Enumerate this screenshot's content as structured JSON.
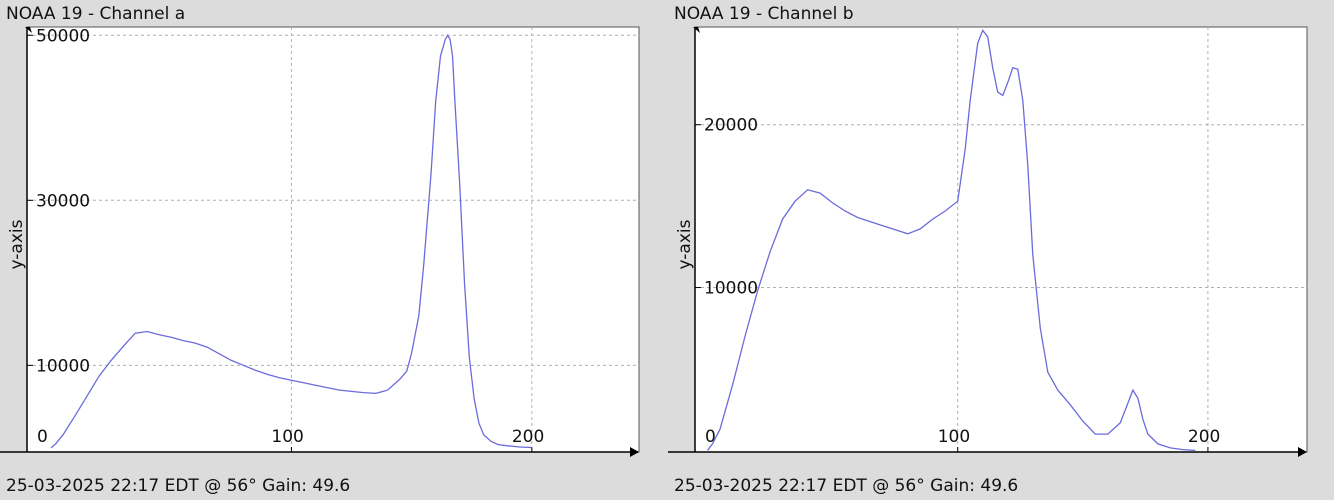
{
  "panels": [
    {
      "title": "NOAA 19 - Channel a",
      "footer": "25-03-2025 22:17 EDT @ 56° Gain: 49.6"
    },
    {
      "title": "NOAA 19 - Channel b",
      "footer": "25-03-2025 22:17 EDT @ 56° Gain: 49.6"
    }
  ],
  "colors": {
    "background": "#dcdcdc",
    "plot_background": "#ffffff",
    "line": "#6b6bdc",
    "grid": "#b0b0b0",
    "axis": "#000000"
  },
  "chart_data": [
    {
      "type": "line",
      "title": "NOAA 19 - Channel a",
      "xlabel": "",
      "ylabel": "y-axis",
      "xlim": [
        -10,
        245
      ],
      "ylim": [
        -500,
        51000
      ],
      "x_ticks": [
        0,
        100,
        200
      ],
      "y_ticks": [
        0,
        10000,
        30000,
        50000
      ],
      "x_tick_labels": [
        "0",
        "100",
        "200"
      ],
      "y_tick_labels": [
        "0",
        "10000",
        "30000",
        "50000"
      ],
      "grid": true,
      "x_grid": [
        100,
        200
      ],
      "y_grid": [
        10000,
        30000,
        50000
      ],
      "series": [
        {
          "x": [
            0,
            2,
            5,
            10,
            15,
            20,
            25,
            30,
            35,
            40,
            45,
            50,
            55,
            60,
            65,
            70,
            75,
            80,
            85,
            90,
            95,
            100,
            110,
            120,
            130,
            135,
            140,
            145,
            148,
            150,
            153,
            155,
            158,
            160,
            162,
            164,
            165,
            166,
            167,
            168,
            170,
            172,
            174,
            176,
            178,
            180,
            183,
            186,
            190,
            195,
            200
          ],
          "y": [
            0,
            500,
            1600,
            3900,
            6300,
            8700,
            10600,
            12300,
            13900,
            14100,
            13700,
            13400,
            13000,
            12700,
            12200,
            11400,
            10600,
            10000,
            9400,
            8900,
            8500,
            8200,
            7600,
            7000,
            6700,
            6600,
            7000,
            8300,
            9300,
            11500,
            16000,
            22000,
            33000,
            42000,
            47500,
            49500,
            50000,
            49500,
            47500,
            42000,
            32000,
            20000,
            11000,
            6000,
            3000,
            1600,
            800,
            400,
            250,
            100,
            50
          ]
        }
      ]
    },
    {
      "type": "line",
      "title": "NOAA 19 - Channel b",
      "xlabel": "",
      "ylabel": "y-axis",
      "xlim": [
        -5,
        240
      ],
      "ylim": [
        -100,
        26000
      ],
      "x_ticks": [
        0,
        100,
        200
      ],
      "y_ticks": [
        0,
        10000,
        20000
      ],
      "x_tick_labels": [
        "0",
        "100",
        "200"
      ],
      "y_tick_labels": [
        "0",
        "10000",
        "20000"
      ],
      "grid": true,
      "x_grid": [
        100,
        200
      ],
      "y_grid": [
        10000,
        20000
      ],
      "series": [
        {
          "x": [
            0,
            2,
            5,
            10,
            15,
            20,
            25,
            30,
            35,
            40,
            45,
            50,
            55,
            60,
            70,
            80,
            85,
            90,
            95,
            100,
            103,
            105,
            108,
            110,
            112,
            114,
            116,
            118,
            120,
            122,
            124,
            126,
            128,
            130,
            133,
            136,
            140,
            145,
            150,
            155,
            160,
            165,
            168,
            170,
            172,
            174,
            176,
            180,
            185,
            190,
            195
          ],
          "y": [
            0,
            400,
            1300,
            4000,
            7000,
            9800,
            12200,
            14200,
            15300,
            16000,
            15800,
            15200,
            14700,
            14300,
            13800,
            13300,
            13600,
            14200,
            14700,
            15300,
            18500,
            21500,
            25000,
            25800,
            25400,
            23500,
            22000,
            21800,
            22600,
            23500,
            23400,
            21500,
            17500,
            12000,
            7500,
            4800,
            3700,
            2800,
            1800,
            1000,
            1000,
            1700,
            2900,
            3700,
            3200,
            1900,
            1000,
            400,
            150,
            50,
            0
          ]
        }
      ]
    }
  ]
}
